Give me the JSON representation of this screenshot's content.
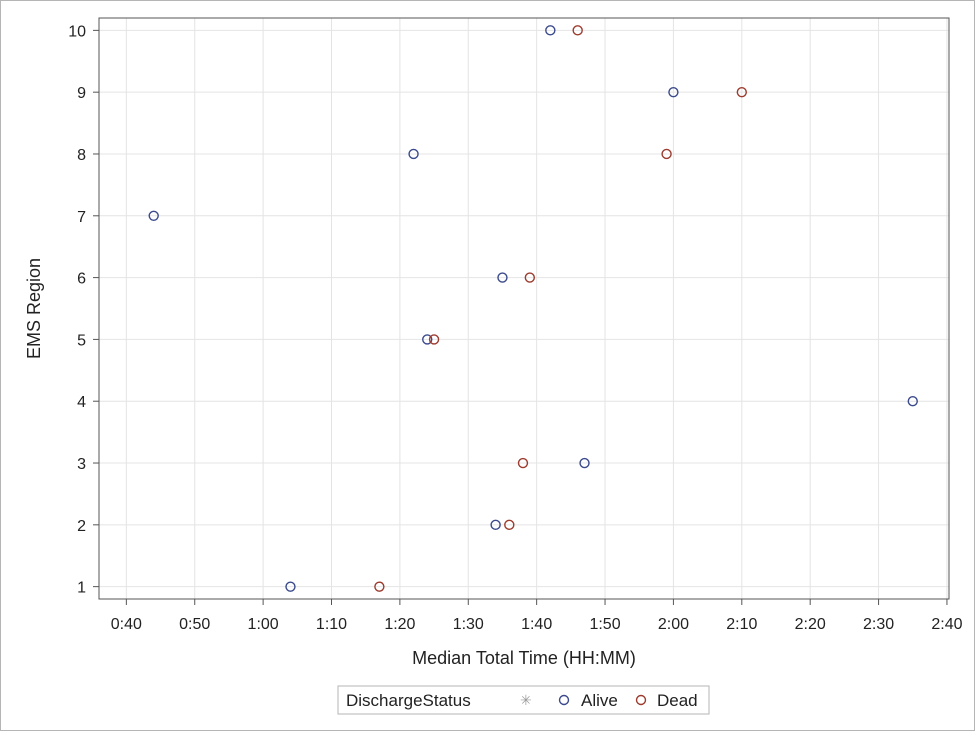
{
  "chart_data": {
    "type": "scatter",
    "xlabel": "Median Total Time (HH:MM)",
    "ylabel": "EMS Region",
    "x_unit": "minutes",
    "xlim": [
      40,
      160
    ],
    "ylim": [
      1,
      10
    ],
    "x_ticks": [
      40,
      50,
      60,
      70,
      80,
      90,
      100,
      110,
      120,
      130,
      140,
      150,
      160
    ],
    "x_tick_labels": [
      "0:40",
      "0:50",
      "1:00",
      "1:10",
      "1:20",
      "1:30",
      "1:40",
      "1:50",
      "2:00",
      "2:10",
      "2:20",
      "2:30",
      "2:40"
    ],
    "y_ticks": [
      1,
      2,
      3,
      4,
      5,
      6,
      7,
      8,
      9,
      10
    ],
    "y_tick_labels": [
      "1",
      "2",
      "3",
      "4",
      "5",
      "6",
      "7",
      "8",
      "9",
      "10"
    ],
    "grid": true,
    "legend": {
      "title": "DischargeStatus",
      "placement": "bottom",
      "missing_symbol": "✳"
    },
    "series": [
      {
        "name": "Alive",
        "color": "#3b4a8c",
        "points": [
          {
            "x": 64,
            "y": 1
          },
          {
            "x": 94,
            "y": 2
          },
          {
            "x": 107,
            "y": 3
          },
          {
            "x": 155,
            "y": 4
          },
          {
            "x": 84,
            "y": 5
          },
          {
            "x": 95,
            "y": 6
          },
          {
            "x": 44,
            "y": 7
          },
          {
            "x": 82,
            "y": 8
          },
          {
            "x": 120,
            "y": 9
          },
          {
            "x": 102,
            "y": 10
          }
        ]
      },
      {
        "name": "Dead",
        "color": "#9c3b2e",
        "points": [
          {
            "x": 77,
            "y": 1
          },
          {
            "x": 96,
            "y": 2
          },
          {
            "x": 98,
            "y": 3
          },
          {
            "x": 85,
            "y": 5
          },
          {
            "x": 99,
            "y": 6
          },
          {
            "x": 119,
            "y": 8
          },
          {
            "x": 130,
            "y": 9
          },
          {
            "x": 106,
            "y": 10
          }
        ]
      }
    ]
  }
}
